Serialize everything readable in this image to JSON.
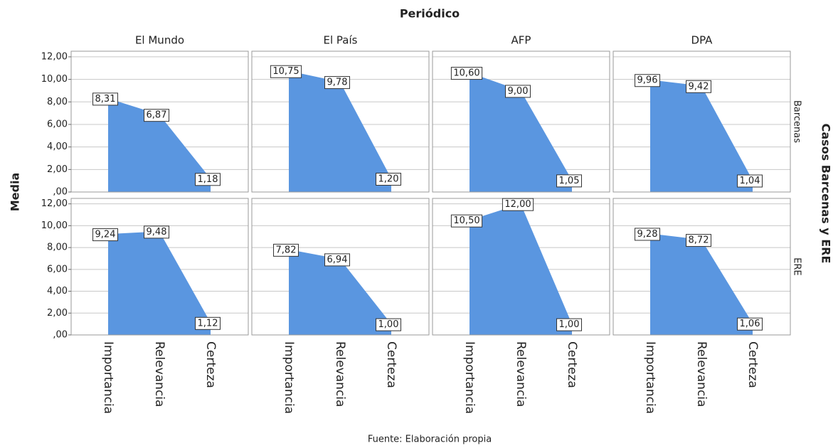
{
  "chart_data": {
    "type": "area",
    "title": "Periódico",
    "ylabel": "Media",
    "row_title": "Casos Barcenas y ERE",
    "columns": [
      "El Mundo",
      "El País",
      "AFP",
      "DPA"
    ],
    "rows": [
      "Barcenas",
      "ERE"
    ],
    "categories": [
      "Importancia",
      "Relevancia",
      "Certeza"
    ],
    "color": "#5a96e0",
    "values": [
      [
        [
          8.31,
          6.87,
          1.18
        ],
        [
          10.75,
          9.78,
          1.2
        ],
        [
          10.6,
          9.0,
          1.05
        ],
        [
          9.96,
          9.42,
          1.04
        ]
      ],
      [
        [
          9.24,
          9.48,
          1.12
        ],
        [
          7.82,
          6.94,
          1.0
        ],
        [
          10.5,
          12.0,
          1.0
        ],
        [
          9.28,
          8.72,
          1.06
        ]
      ]
    ],
    "value_labels": [
      [
        [
          "8,31",
          "6,87",
          "1,18"
        ],
        [
          "10,75",
          "9,78",
          "1,20"
        ],
        [
          "10,60",
          "9,00",
          "1,05"
        ],
        [
          "9,96",
          "9,42",
          "1,04"
        ]
      ],
      [
        [
          "9,24",
          "9,48",
          "1,12"
        ],
        [
          "7,82",
          "6,94",
          "1,00"
        ],
        [
          "10,50",
          "12,00",
          "1,00"
        ],
        [
          "9,28",
          "8,72",
          "1,06"
        ]
      ]
    ],
    "ylim": [
      0,
      12.5
    ],
    "yticks": [
      {
        "value": 0,
        "label": ",00"
      },
      {
        "value": 2,
        "label": "2,00"
      },
      {
        "value": 4,
        "label": "4,00"
      },
      {
        "value": 6,
        "label": "6,00"
      },
      {
        "value": 8,
        "label": "8,00"
      },
      {
        "value": 10,
        "label": "10,00"
      },
      {
        "value": 12,
        "label": "12,00"
      }
    ],
    "grid": true,
    "source": "Fuente: Elaboración propia"
  }
}
